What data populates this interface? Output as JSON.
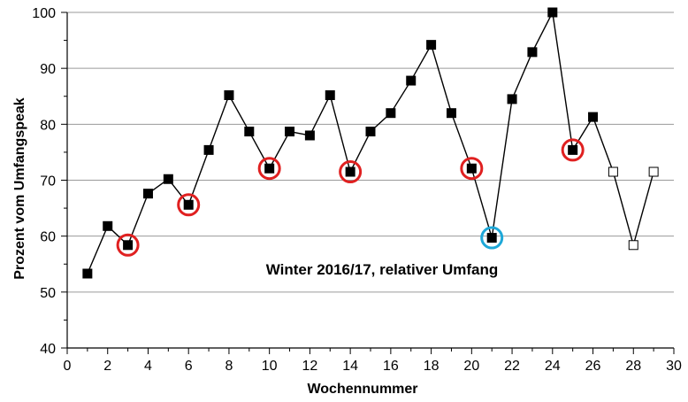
{
  "chart_data": {
    "type": "scatter",
    "title": "",
    "xlabel": "Wochennummer",
    "ylabel": "Prozent vom Umfangspeak",
    "annotation": "Winter 2016/17,  relativer Umfang",
    "xlim": [
      0,
      30
    ],
    "ylim": [
      40,
      100
    ],
    "x_ticks": [
      0,
      2,
      4,
      6,
      8,
      10,
      12,
      14,
      16,
      18,
      20,
      22,
      24,
      26,
      28,
      30
    ],
    "x_tick_labels": [
      "0",
      "2",
      "4",
      "6",
      "8",
      "10",
      "12",
      "14",
      "16",
      "18",
      "20",
      "22",
      "24",
      "26",
      "28",
      "30"
    ],
    "y_ticks": [
      40,
      50,
      60,
      70,
      80,
      90,
      100
    ],
    "y_tick_labels": [
      "40",
      "50",
      "60",
      "70",
      "80",
      "90",
      "100"
    ],
    "grid": "horizontal",
    "legend": "none",
    "series": [
      {
        "line_color": "#000000",
        "points": [
          {
            "x": 1,
            "y": 53.3,
            "marker": "filled"
          },
          {
            "x": 2,
            "y": 61.8,
            "marker": "filled"
          },
          {
            "x": 3,
            "y": 58.4,
            "marker": "filled"
          },
          {
            "x": 4,
            "y": 67.6,
            "marker": "filled"
          },
          {
            "x": 5,
            "y": 70.2,
            "marker": "filled"
          },
          {
            "x": 6,
            "y": 65.6,
            "marker": "filled"
          },
          {
            "x": 7,
            "y": 75.4,
            "marker": "filled"
          },
          {
            "x": 8,
            "y": 85.2,
            "marker": "filled"
          },
          {
            "x": 9,
            "y": 78.7,
            "marker": "filled"
          },
          {
            "x": 10,
            "y": 72.1,
            "marker": "filled"
          },
          {
            "x": 11,
            "y": 78.7,
            "marker": "filled"
          },
          {
            "x": 12,
            "y": 78.0,
            "marker": "filled"
          },
          {
            "x": 13,
            "y": 85.2,
            "marker": "filled"
          },
          {
            "x": 14,
            "y": 71.5,
            "marker": "filled"
          },
          {
            "x": 15,
            "y": 78.7,
            "marker": "filled"
          },
          {
            "x": 16,
            "y": 82.0,
            "marker": "filled"
          },
          {
            "x": 17,
            "y": 87.8,
            "marker": "filled"
          },
          {
            "x": 18,
            "y": 94.2,
            "marker": "filled"
          },
          {
            "x": 19,
            "y": 82.0,
            "marker": "filled"
          },
          {
            "x": 20,
            "y": 72.1,
            "marker": "filled"
          },
          {
            "x": 21,
            "y": 59.7,
            "marker": "filled"
          },
          {
            "x": 22,
            "y": 84.5,
            "marker": "filled"
          },
          {
            "x": 23,
            "y": 92.9,
            "marker": "filled"
          },
          {
            "x": 24,
            "y": 100.0,
            "marker": "filled"
          },
          {
            "x": 25,
            "y": 75.4,
            "marker": "filled"
          },
          {
            "x": 26,
            "y": 81.3,
            "marker": "filled"
          },
          {
            "x": 27,
            "y": 71.5,
            "marker": "open"
          },
          {
            "x": 28,
            "y": 58.4,
            "marker": "open"
          },
          {
            "x": 29,
            "y": 71.5,
            "marker": "open"
          }
        ]
      }
    ],
    "highlight_circles": [
      {
        "x": 3,
        "y": 58.4,
        "color": "#e02020"
      },
      {
        "x": 6,
        "y": 65.6,
        "color": "#e02020"
      },
      {
        "x": 10,
        "y": 72.1,
        "color": "#e02020"
      },
      {
        "x": 14,
        "y": 71.5,
        "color": "#e02020"
      },
      {
        "x": 20,
        "y": 72.1,
        "color": "#e02020"
      },
      {
        "x": 21,
        "y": 59.7,
        "color": "#1ea8d8"
      },
      {
        "x": 25,
        "y": 75.4,
        "color": "#e02020"
      }
    ]
  }
}
